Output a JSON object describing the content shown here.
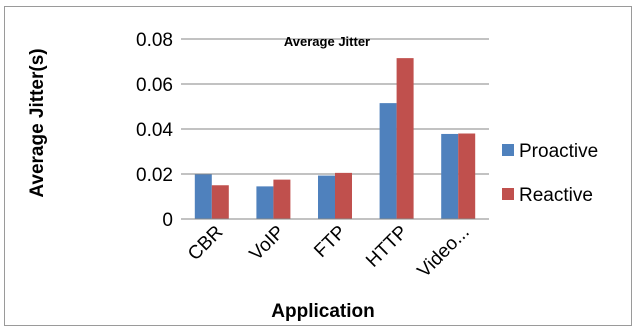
{
  "chart_data": {
    "type": "bar",
    "title": "Average Jitter",
    "xlabel": "Application",
    "ylabel": "Average Jitter(s)",
    "categories": [
      "CBR",
      "VoIP",
      "FTP",
      "HTTP",
      "Video..."
    ],
    "ylim": [
      0,
      0.08
    ],
    "yticks": [
      "0",
      "0.02",
      "0.04",
      "0.06",
      "0.08"
    ],
    "ytick_values": [
      0,
      0.02,
      0.04,
      0.06,
      0.08
    ],
    "grid": "horizontal",
    "legend_position": "right",
    "series": [
      {
        "name": "Proactive",
        "color": "#4f81bd",
        "values": [
          0.0198,
          0.0145,
          0.0193,
          0.0515,
          0.0378
        ]
      },
      {
        "name": "Reactive",
        "color": "#c0504d",
        "values": [
          0.015,
          0.0175,
          0.0205,
          0.0715,
          0.038
        ]
      }
    ]
  }
}
